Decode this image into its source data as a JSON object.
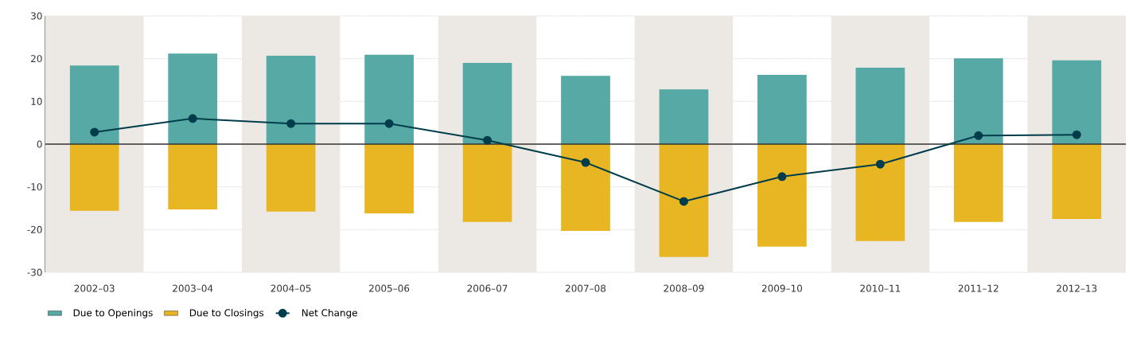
{
  "chart_data": {
    "type": "bar",
    "categories": [
      "2002–03",
      "2003–04",
      "2004–05",
      "2005–06",
      "2006–07",
      "2007–08",
      "2008–09",
      "2009–10",
      "2010–11",
      "2011–12",
      "2012–13"
    ],
    "series": [
      {
        "name": "Due to Openings",
        "color": "#56a9a4",
        "values": [
          18.4,
          21.2,
          20.7,
          20.9,
          19.0,
          16.0,
          12.8,
          16.2,
          17.9,
          20.1,
          19.6
        ]
      },
      {
        "name": "Due to Closings",
        "color": "#e9b623",
        "values": [
          -15.6,
          -15.3,
          -15.8,
          -16.2,
          -18.2,
          -20.3,
          -26.4,
          -24.0,
          -22.7,
          -18.2,
          -17.5
        ]
      },
      {
        "name": "Net Change",
        "type": "line",
        "color": "#003d4c",
        "marker": "circle",
        "values": [
          2.8,
          6.0,
          4.8,
          4.8,
          0.9,
          -4.3,
          -13.4,
          -7.6,
          -4.7,
          2.0,
          2.2
        ]
      }
    ],
    "stacked": true,
    "ylim": [
      -30,
      30
    ],
    "yticks": [
      -30,
      -20,
      -10,
      0,
      10,
      20,
      30
    ],
    "grid": "y",
    "legend": "bottom left",
    "ref_lines": [
      {
        "axis": "y",
        "value": 0,
        "color": "#333333"
      }
    ],
    "bands": [
      {
        "axis": "x",
        "from": "2002–03",
        "to": "2002–03",
        "color": "#ece9e4"
      },
      {
        "axis": "x",
        "from": "2004–05",
        "to": "2004–05",
        "color": "#ece9e4"
      },
      {
        "axis": "x",
        "from": "2006–07",
        "to": "2006–07",
        "color": "#ece9e4"
      },
      {
        "axis": "x",
        "from": "2008–09",
        "to": "2008–09",
        "color": "#ece9e4"
      },
      {
        "axis": "x",
        "from": "2010–11",
        "to": "2010–11",
        "color": "#ece9e4"
      },
      {
        "axis": "x",
        "from": "2012–13",
        "to": "2012–13",
        "color": "#ece9e4"
      }
    ]
  }
}
